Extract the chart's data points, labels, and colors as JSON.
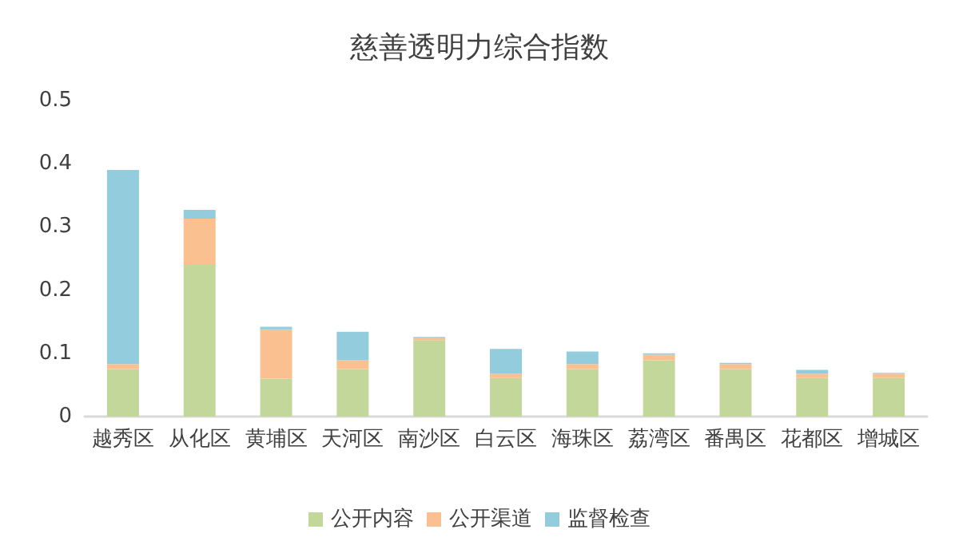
{
  "chart_data": {
    "type": "bar",
    "title": "慈善透明力综合指数",
    "stacked": true,
    "categories": [
      "越秀区",
      "从化区",
      "黄埔区",
      "天河区",
      "南沙区",
      "白云区",
      "海珠区",
      "荔湾区",
      "番禺区",
      "花都区",
      "增城区"
    ],
    "series": [
      {
        "name": "公开内容",
        "color": "#c4d79b",
        "values": [
          0.075,
          0.24,
          0.06,
          0.075,
          0.121,
          0.061,
          0.075,
          0.089,
          0.075,
          0.061,
          0.061
        ]
      },
      {
        "name": "公开渠道",
        "color": "#fac090",
        "values": [
          0.008,
          0.073,
          0.078,
          0.014,
          0.003,
          0.007,
          0.008,
          0.009,
          0.008,
          0.007,
          0.007
        ]
      },
      {
        "name": "监督检查",
        "color": "#93cddd",
        "values": [
          0.307,
          0.014,
          0.004,
          0.045,
          0.002,
          0.039,
          0.02,
          0.002,
          0.002,
          0.006,
          0.001
        ]
      }
    ],
    "ylim": [
      0,
      0.5
    ],
    "yticks": [
      0,
      0.1,
      0.2,
      0.3,
      0.4,
      0.5
    ],
    "grid": false,
    "legend": "bottom"
  }
}
